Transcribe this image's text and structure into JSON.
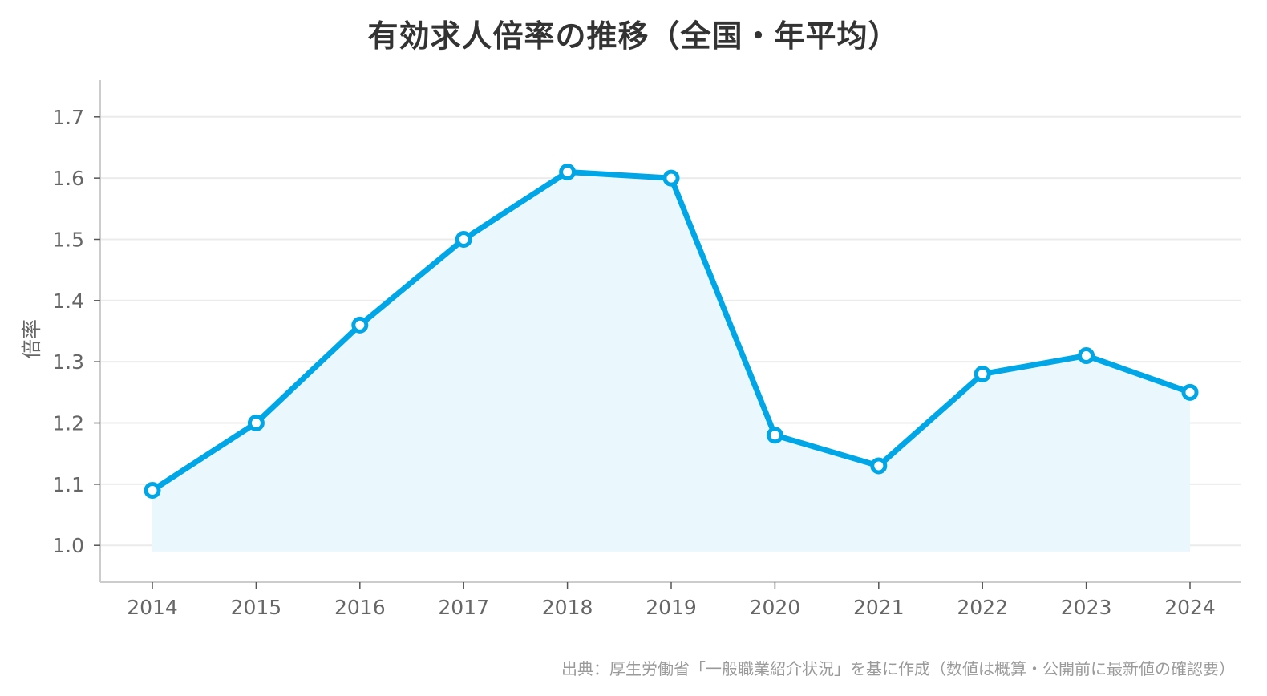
{
  "chart_data": {
    "type": "line",
    "title": "有効求人倍率の推移（全国・年平均）",
    "xlabel": "",
    "ylabel": "倍率",
    "x": [
      "2014",
      "2015",
      "2016",
      "2017",
      "2018",
      "2019",
      "2020",
      "2021",
      "2022",
      "2023",
      "2024"
    ],
    "series": [
      {
        "values": [
          1.09,
          1.2,
          1.36,
          1.5,
          1.61,
          1.6,
          1.18,
          1.13,
          1.28,
          1.31,
          1.25
        ]
      }
    ],
    "ylim": [
      0.94,
      1.76
    ],
    "yticks": [
      "1.0",
      "1.1",
      "1.2",
      "1.3",
      "1.4",
      "1.5",
      "1.6",
      "1.7"
    ],
    "area_fill": true,
    "grid": "horizontal",
    "legend": "none",
    "colors": {
      "line": "#00a6e6",
      "area": "#eaf8fd",
      "marker_fill": "#ffffff",
      "grid": "#ebebeb",
      "axis": "#cccccc"
    }
  },
  "source": "出典：厚生労働省「一般職業紹介状況」を基に作成（数値は概算・公開前に最新値の確認要）"
}
